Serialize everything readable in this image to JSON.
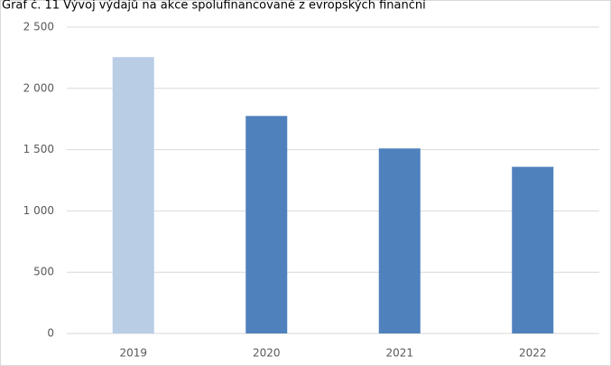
{
  "chart_data": {
    "type": "bar",
    "title": "Graf č. 11 Vývoj výdajů na akce spolufinancované z evropských finanční",
    "categories": [
      "2019",
      "2020",
      "2021",
      "2022"
    ],
    "values": [
      2255,
      1775,
      1510,
      1360
    ],
    "colors": [
      "#b9cde5",
      "#4f81bd",
      "#4f81bd",
      "#4f81bd"
    ],
    "ylim": [
      0,
      2500
    ],
    "yticks": [
      0,
      500,
      {
        "value": 1000,
        "label": "1 000"
      },
      {
        "value": 1500,
        "label": "1 500"
      },
      {
        "value": 2000,
        "label": "2 000"
      },
      {
        "value": 2500,
        "label": "2 500"
      }
    ],
    "grid": true
  }
}
